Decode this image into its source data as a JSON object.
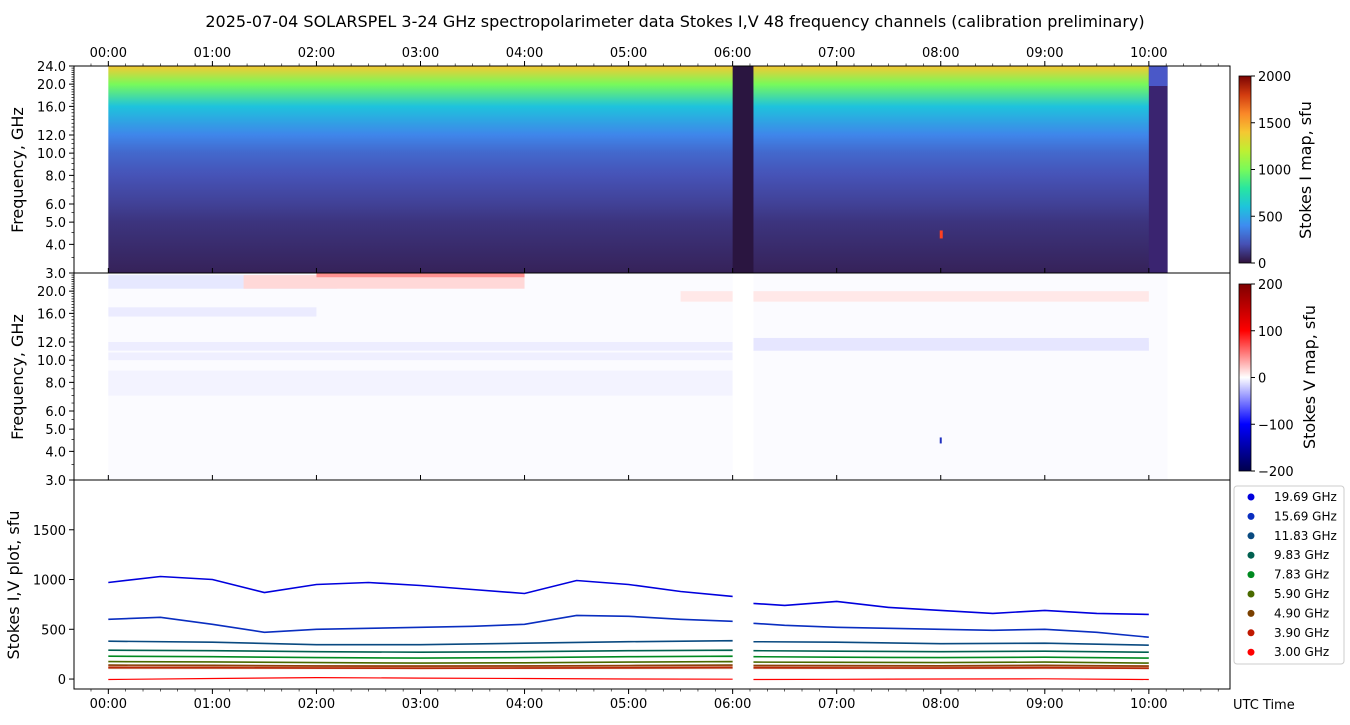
{
  "title": "2025-07-04  SOLARSPEL  3-24 GHz spectropolarimeter data   Stokes I,V   48 frequency channels   (calibration preliminary)",
  "time_ticks": [
    "00:00",
    "01:00",
    "02:00",
    "03:00",
    "04:00",
    "05:00",
    "06:00",
    "07:00",
    "08:00",
    "09:00",
    "10:00"
  ],
  "x_axis_label": "UTC Time",
  "chart_data": [
    {
      "type": "heatmap",
      "panel": "stokes-i",
      "ylabel": "Frequency, GHz",
      "colorbar_label": "Stokes I map, sfu",
      "colorbar_ticks": [
        "0",
        "500",
        "1000",
        "1500",
        "2000"
      ],
      "clim": [
        0,
        2000
      ],
      "colormap": "turbo",
      "ylim": [
        3.0,
        24.0
      ],
      "y_scale": "log",
      "y_ticks": [
        3.0,
        4.0,
        5.0,
        6.0,
        8.0,
        10.0,
        12.0,
        16.0,
        20.0,
        24.0
      ],
      "y_tick_labels": [
        "3.0",
        "4.0",
        "5.0",
        "6.0",
        "8.0",
        "10.0",
        "12.0",
        "16.0",
        "20.0",
        "24.0"
      ],
      "xlim_hours": [
        -0.33,
        10.78
      ],
      "data_range_hours": [
        0.0,
        10.18
      ],
      "data_gaps_hours": [
        [
          6.0,
          6.2
        ],
        [
          10.0,
          10.18
        ]
      ],
      "approx_levels_sfu": [
        {
          "freq_ghz": 3.0,
          "value": 50
        },
        {
          "freq_ghz": 5.0,
          "value": 110
        },
        {
          "freq_ghz": 6.0,
          "value": 150
        },
        {
          "freq_ghz": 8.0,
          "value": 210
        },
        {
          "freq_ghz": 10.0,
          "value": 280
        },
        {
          "freq_ghz": 12.0,
          "value": 380
        },
        {
          "freq_ghz": 16.0,
          "value": 600
        },
        {
          "freq_ghz": 20.0,
          "value": 1000
        },
        {
          "freq_ghz": 24.0,
          "value": 1400
        }
      ]
    },
    {
      "type": "heatmap",
      "panel": "stokes-v",
      "ylabel": "Frequency, GHz",
      "colorbar_label": "Stokes V map, sfu",
      "colorbar_ticks": [
        "200",
        "100",
        "0",
        "−100",
        "−200"
      ],
      "clim": [
        -200,
        200
      ],
      "colormap": "seismic",
      "ylim": [
        3.0,
        24.0
      ],
      "y_scale": "log",
      "y_ticks": [
        3.0,
        4.0,
        5.0,
        6.0,
        8.0,
        10.0,
        12.0,
        16.0,
        20.0
      ],
      "y_tick_labels": [
        "3.0",
        "4.0",
        "5.0",
        "6.0",
        "8.0",
        "10.0",
        "12.0",
        "16.0",
        "20.0"
      ],
      "xlim_hours": [
        -0.33,
        10.78
      ]
    },
    {
      "type": "line",
      "panel": "stokes-iv-plot",
      "ylabel": "Stokes I,V plot, sfu",
      "ylim": [
        -100,
        2000
      ],
      "y_ticks": [
        0,
        500,
        1000,
        1500
      ],
      "xlim_hours": [
        -0.33,
        10.78
      ],
      "legend_placement": "right",
      "series": [
        {
          "name": "19.69 GHz",
          "color": "#0000dd",
          "x": [
            0.0,
            0.5,
            1.0,
            1.5,
            2.0,
            2.5,
            3.0,
            3.5,
            4.0,
            4.5,
            5.0,
            5.5,
            6.0,
            6.2,
            6.5,
            7.0,
            7.5,
            8.0,
            8.5,
            9.0,
            9.5,
            10.0
          ],
          "values": [
            970,
            1030,
            1000,
            870,
            950,
            970,
            940,
            900,
            860,
            990,
            950,
            880,
            830,
            760,
            740,
            780,
            720,
            690,
            660,
            690,
            660,
            650
          ]
        },
        {
          "name": "15.69 GHz",
          "color": "#0a2ec0",
          "x": [
            0.0,
            0.5,
            1.0,
            1.5,
            2.0,
            2.5,
            3.0,
            3.5,
            4.0,
            4.5,
            5.0,
            5.5,
            6.0,
            6.2,
            6.5,
            7.0,
            7.5,
            8.0,
            8.5,
            9.0,
            9.5,
            10.0
          ],
          "values": [
            600,
            620,
            550,
            470,
            500,
            510,
            520,
            530,
            550,
            640,
            630,
            600,
            580,
            560,
            540,
            520,
            510,
            500,
            490,
            500,
            470,
            420
          ]
        },
        {
          "name": "11.83 GHz",
          "color": "#0a4a80",
          "x": [
            0.0,
            1.0,
            2.0,
            3.0,
            4.0,
            5.0,
            6.0,
            6.2,
            7.0,
            8.0,
            9.0,
            10.0
          ],
          "values": [
            380,
            370,
            345,
            345,
            360,
            375,
            385,
            375,
            370,
            355,
            360,
            340
          ]
        },
        {
          "name": "9.83 GHz",
          "color": "#006050",
          "x": [
            0.0,
            1.0,
            2.0,
            3.0,
            4.0,
            5.0,
            6.0,
            6.2,
            7.0,
            8.0,
            9.0,
            10.0
          ],
          "values": [
            290,
            285,
            275,
            270,
            275,
            285,
            290,
            285,
            280,
            275,
            280,
            270
          ]
        },
        {
          "name": "7.83 GHz",
          "color": "#008a20",
          "x": [
            0.0,
            1.0,
            2.0,
            3.0,
            4.0,
            5.0,
            6.0,
            6.2,
            7.0,
            8.0,
            9.0,
            10.0
          ],
          "values": [
            230,
            225,
            215,
            210,
            215,
            225,
            230,
            225,
            220,
            215,
            220,
            210
          ]
        },
        {
          "name": "5.90 GHz",
          "color": "#4a6a00",
          "x": [
            0.0,
            1.0,
            2.0,
            3.0,
            4.0,
            5.0,
            6.0,
            6.2,
            7.0,
            8.0,
            9.0,
            10.0
          ],
          "values": [
            175,
            172,
            165,
            160,
            163,
            170,
            175,
            170,
            168,
            165,
            170,
            160
          ]
        },
        {
          "name": "4.90 GHz",
          "color": "#7a4000",
          "x": [
            0.0,
            1.0,
            2.0,
            3.0,
            4.0,
            5.0,
            6.0,
            6.2,
            7.0,
            8.0,
            9.0,
            10.0
          ],
          "values": [
            140,
            138,
            132,
            130,
            132,
            136,
            140,
            137,
            135,
            133,
            138,
            130
          ]
        },
        {
          "name": "3.90 GHz",
          "color": "#c01800",
          "x": [
            0.0,
            1.0,
            2.0,
            3.0,
            4.0,
            5.0,
            6.0,
            6.2,
            7.0,
            8.0,
            9.0,
            10.0
          ],
          "values": [
            115,
            114,
            110,
            108,
            110,
            113,
            116,
            114,
            112,
            110,
            114,
            108
          ]
        },
        {
          "name": "3.00 GHz",
          "color": "#ff0000",
          "x": [
            0.0,
            1.0,
            2.0,
            3.0,
            4.0,
            5.0,
            6.0,
            6.2,
            7.0,
            8.0,
            9.0,
            10.0
          ],
          "values": [
            -5,
            5,
            15,
            10,
            5,
            0,
            -2,
            -5,
            -3,
            0,
            2,
            -5
          ]
        }
      ]
    }
  ]
}
